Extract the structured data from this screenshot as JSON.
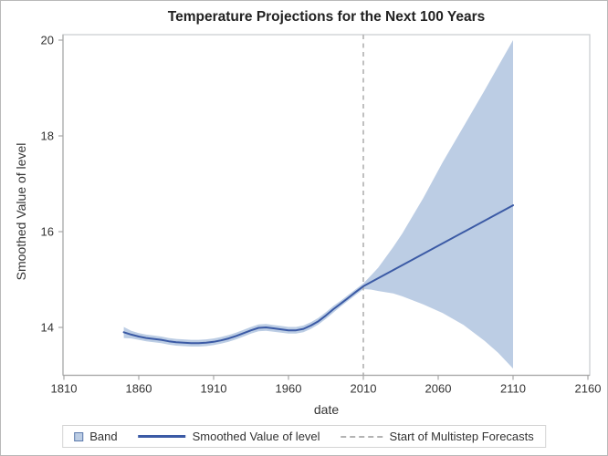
{
  "chart_data": {
    "type": "line",
    "title": "Temperature Projections for the Next 100 Years",
    "xlabel": "date",
    "ylabel": "Smoothed Value of level",
    "x_ticks": [
      1810,
      1860,
      1910,
      1960,
      2010,
      2060,
      2110,
      2160
    ],
    "y_ticks": [
      14,
      16,
      18,
      20
    ],
    "xlim": [
      1810,
      2160
    ],
    "ylim": [
      13,
      20.1
    ],
    "grid": false,
    "legend_position": "bottom",
    "refline_x": 2010,
    "series": [
      {
        "name": "Smoothed Value of level",
        "points": [
          [
            1850,
            13.9
          ],
          [
            1855,
            13.85
          ],
          [
            1860,
            13.81
          ],
          [
            1865,
            13.78
          ],
          [
            1870,
            13.76
          ],
          [
            1875,
            13.74
          ],
          [
            1880,
            13.71
          ],
          [
            1885,
            13.69
          ],
          [
            1890,
            13.68
          ],
          [
            1895,
            13.67
          ],
          [
            1900,
            13.67
          ],
          [
            1905,
            13.68
          ],
          [
            1910,
            13.7
          ],
          [
            1915,
            13.73
          ],
          [
            1920,
            13.77
          ],
          [
            1925,
            13.82
          ],
          [
            1930,
            13.88
          ],
          [
            1935,
            13.94
          ],
          [
            1940,
            13.99
          ],
          [
            1945,
            14.0
          ],
          [
            1950,
            13.98
          ],
          [
            1955,
            13.96
          ],
          [
            1960,
            13.94
          ],
          [
            1965,
            13.94
          ],
          [
            1970,
            13.97
          ],
          [
            1975,
            14.04
          ],
          [
            1980,
            14.13
          ],
          [
            1985,
            14.25
          ],
          [
            1990,
            14.38
          ],
          [
            1995,
            14.5
          ],
          [
            2000,
            14.62
          ],
          [
            2005,
            14.74
          ],
          [
            2010,
            14.86
          ],
          [
            2110,
            16.55
          ]
        ]
      }
    ],
    "band": {
      "name": "Band",
      "points": [
        [
          1850,
          13.78,
          14.01
        ],
        [
          1855,
          13.77,
          13.93
        ],
        [
          1860,
          13.74,
          13.88
        ],
        [
          1865,
          13.71,
          13.85
        ],
        [
          1870,
          13.69,
          13.83
        ],
        [
          1875,
          13.67,
          13.81
        ],
        [
          1880,
          13.64,
          13.78
        ],
        [
          1885,
          13.62,
          13.76
        ],
        [
          1890,
          13.61,
          13.75
        ],
        [
          1895,
          13.6,
          13.74
        ],
        [
          1900,
          13.6,
          13.74
        ],
        [
          1905,
          13.61,
          13.75
        ],
        [
          1910,
          13.63,
          13.77
        ],
        [
          1915,
          13.66,
          13.8
        ],
        [
          1920,
          13.7,
          13.84
        ],
        [
          1925,
          13.75,
          13.89
        ],
        [
          1930,
          13.81,
          13.95
        ],
        [
          1935,
          13.87,
          14.01
        ],
        [
          1940,
          13.92,
          14.06
        ],
        [
          1945,
          13.93,
          14.07
        ],
        [
          1950,
          13.91,
          14.05
        ],
        [
          1955,
          13.89,
          14.03
        ],
        [
          1960,
          13.87,
          14.01
        ],
        [
          1965,
          13.87,
          14.01
        ],
        [
          1970,
          13.9,
          14.04
        ],
        [
          1975,
          13.97,
          14.11
        ],
        [
          1980,
          14.06,
          14.2
        ],
        [
          1985,
          14.18,
          14.32
        ],
        [
          1990,
          14.31,
          14.45
        ],
        [
          1995,
          14.44,
          14.56
        ],
        [
          2000,
          14.56,
          14.68
        ],
        [
          2005,
          14.68,
          14.8
        ],
        [
          2010,
          14.8,
          14.92
        ],
        [
          2015,
          14.79,
          15.08
        ],
        [
          2020,
          14.76,
          15.25
        ],
        [
          2030,
          14.71,
          15.68
        ],
        [
          2036,
          14.65,
          15.96
        ],
        [
          2050,
          14.48,
          16.7
        ],
        [
          2063,
          14.3,
          17.45
        ],
        [
          2077,
          14.05,
          18.2
        ],
        [
          2091,
          13.72,
          18.95
        ],
        [
          2100,
          13.47,
          19.45
        ],
        [
          2110,
          13.14,
          20.0
        ]
      ]
    },
    "legend": [
      {
        "label": "Band",
        "swatch": "band"
      },
      {
        "label": "Smoothed Value of level",
        "swatch": "line"
      },
      {
        "label": "Start of Multistep Forecasts",
        "swatch": "dashed-line"
      }
    ],
    "colors": {
      "band": "#bccde4",
      "line": "#3b5aa5",
      "refline": "#b1b1b1",
      "axis": "#a6a6a6",
      "frame": "#c7cbce",
      "text": "#333333"
    }
  }
}
